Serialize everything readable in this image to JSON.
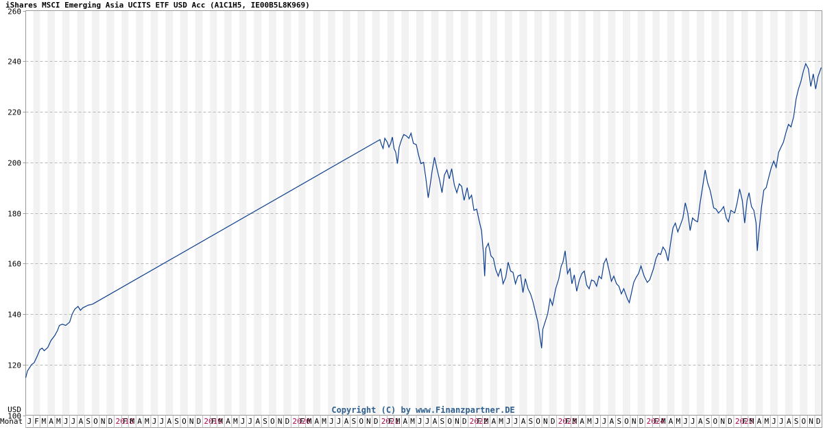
{
  "chart_data": {
    "type": "line",
    "title": "iShares MSCI Emerging Asia UCITS ETF USD Acc (A1C1H5, IE00B5L8K969)",
    "currency": "USD",
    "x_axis_label": "Monat",
    "copyright": "Copyright (C) by www.Finanzpartner.DE",
    "ylim": [
      100,
      260
    ],
    "yticks": [
      100,
      120,
      140,
      160,
      180,
      200,
      220,
      240,
      260
    ],
    "grid": true,
    "x_start": "2017-01-01",
    "x_end": "2025-12-31",
    "month_letters": [
      "J",
      "F",
      "M",
      "A",
      "M",
      "J",
      "J",
      "A",
      "S",
      "O",
      "N",
      "D"
    ],
    "years": [
      "2018",
      "2019",
      "2020",
      "2021",
      "2022",
      "2023",
      "2024",
      "2025"
    ],
    "line_color": "#0a3d8f",
    "series": [
      {
        "x": [
          "2017-01-01",
          "2017-01-08",
          "2017-01-25",
          "2017-02-05",
          "2017-02-18",
          "2017-03-01",
          "2017-03-10",
          "2017-03-18",
          "2017-04-02",
          "2017-04-15",
          "2017-05-01",
          "2017-05-12",
          "2017-05-20",
          "2017-06-01",
          "2017-06-15",
          "2017-07-01",
          "2017-07-12",
          "2017-07-23",
          "2017-08-05",
          "2017-08-15",
          "2017-08-25",
          "2017-09-05",
          "2017-09-15",
          "2017-09-25",
          "2017-10-05",
          "2021-01-02",
          "2021-01-08",
          "2021-01-15",
          "2021-01-22",
          "2021-02-01",
          "2021-02-08",
          "2021-02-15",
          "2021-02-22",
          "2021-03-01",
          "2021-03-08",
          "2021-03-15",
          "2021-03-22",
          "2021-04-01",
          "2021-04-10",
          "2021-04-20",
          "2021-05-01",
          "2021-05-10",
          "2021-05-20",
          "2021-06-01",
          "2021-06-10",
          "2021-06-20",
          "2021-07-01",
          "2021-07-10",
          "2021-07-20",
          "2021-07-28",
          "2021-08-05",
          "2021-08-15",
          "2021-08-25",
          "2021-09-05",
          "2021-09-15",
          "2021-09-25",
          "2021-10-05",
          "2021-10-15",
          "2021-10-25",
          "2021-11-05",
          "2021-11-15",
          "2021-11-25",
          "2021-12-05",
          "2021-12-15",
          "2021-12-28",
          "2022-01-05",
          "2022-01-15",
          "2022-01-25",
          "2022-02-05",
          "2022-02-15",
          "2022-02-25",
          "2022-03-05",
          "2022-03-10",
          "2022-03-15",
          "2022-03-25",
          "2022-04-05",
          "2022-04-15",
          "2022-04-25",
          "2022-05-05",
          "2022-05-15",
          "2022-05-25",
          "2022-06-05",
          "2022-06-15",
          "2022-06-25",
          "2022-07-05",
          "2022-07-15",
          "2022-07-25",
          "2022-08-05",
          "2022-08-15",
          "2022-08-25",
          "2022-09-05",
          "2022-09-15",
          "2022-09-25",
          "2022-10-05",
          "2022-10-15",
          "2022-10-25",
          "2022-10-31",
          "2022-11-05",
          "2022-11-15",
          "2022-11-25",
          "2022-12-05",
          "2022-12-15",
          "2022-12-28",
          "2023-01-10",
          "2023-01-20",
          "2023-01-27",
          "2023-02-05",
          "2023-02-15",
          "2023-02-25",
          "2023-03-05",
          "2023-03-15",
          "2023-03-25",
          "2023-04-05",
          "2023-04-15",
          "2023-04-25",
          "2023-05-05",
          "2023-05-15",
          "2023-05-25",
          "2023-06-05",
          "2023-06-15",
          "2023-06-25",
          "2023-07-05",
          "2023-07-15",
          "2023-07-25",
          "2023-08-05",
          "2023-08-15",
          "2023-08-25",
          "2023-09-05",
          "2023-09-15",
          "2023-09-25",
          "2023-10-05",
          "2023-10-20",
          "2023-10-28",
          "2023-11-05",
          "2023-11-15",
          "2023-11-25",
          "2023-12-05",
          "2023-12-15",
          "2023-12-28",
          "2024-01-10",
          "2024-01-20",
          "2024-02-05",
          "2024-02-15",
          "2024-02-25",
          "2024-03-05",
          "2024-03-15",
          "2024-03-25",
          "2024-04-05",
          "2024-04-15",
          "2024-04-25",
          "2024-05-05",
          "2024-05-15",
          "2024-05-25",
          "2024-06-05",
          "2024-06-15",
          "2024-06-25",
          "2024-07-05",
          "2024-07-15",
          "2024-07-25",
          "2024-08-05",
          "2024-08-15",
          "2024-08-25",
          "2024-09-05",
          "2024-09-15",
          "2024-09-25",
          "2024-10-02",
          "2024-10-10",
          "2024-10-20",
          "2024-10-30",
          "2024-11-10",
          "2024-11-20",
          "2024-12-01",
          "2024-12-10",
          "2024-12-20",
          "2025-01-05",
          "2025-01-15",
          "2025-01-25",
          "2025-02-05",
          "2025-02-15",
          "2025-02-25",
          "2025-03-05",
          "2025-03-15",
          "2025-03-25",
          "2025-04-03",
          "2025-04-08",
          "2025-04-15",
          "2025-04-25",
          "2025-05-05",
          "2025-05-15",
          "2025-05-25",
          "2025-06-05",
          "2025-06-15",
          "2025-06-25",
          "2025-07-05",
          "2025-07-15",
          "2025-07-25",
          "2025-08-05",
          "2025-08-15",
          "2025-08-25",
          "2025-09-05",
          "2025-09-15",
          "2025-09-25",
          "2025-10-05",
          "2025-10-15",
          "2025-10-25",
          "2025-11-05",
          "2025-11-15",
          "2025-11-25",
          "2025-12-05",
          "2025-12-15",
          "2025-12-28"
        ],
        "y": [
          114.8,
          117.5,
          120.0,
          120.8,
          123.5,
          126.0,
          126.5,
          125.5,
          126.8,
          129.5,
          131.5,
          133.5,
          135.5,
          136.0,
          135.5,
          136.8,
          140.0,
          142.0,
          143.0,
          141.5,
          142.5,
          143.0,
          143.5,
          143.7,
          144.0,
          209.0,
          207.0,
          205.5,
          209.5,
          208.0,
          206.0,
          207.5,
          210.0,
          205.5,
          204.0,
          199.5,
          206.0,
          209.0,
          211.0,
          210.5,
          209.5,
          211.5,
          207.5,
          207.0,
          203.0,
          199.5,
          200.0,
          194.0,
          186.0,
          191.0,
          196.5,
          202.0,
          197.5,
          193.0,
          188.0,
          195.0,
          197.0,
          193.5,
          197.5,
          191.0,
          188.0,
          191.5,
          190.5,
          185.0,
          190.0,
          185.5,
          187.0,
          181.0,
          181.5,
          177.0,
          173.0,
          164.0,
          155.0,
          166.0,
          168.0,
          163.0,
          162.0,
          157.5,
          155.0,
          158.0,
          152.0,
          154.5,
          160.5,
          157.0,
          156.5,
          152.0,
          155.0,
          155.5,
          148.5,
          154.0,
          150.0,
          148.0,
          145.0,
          141.0,
          137.0,
          130.5,
          126.5,
          134.0,
          137.0,
          140.0,
          146.0,
          143.5,
          150.0,
          154.0,
          159.0,
          160.5,
          165.0,
          156.0,
          158.0,
          152.0,
          155.5,
          149.0,
          153.5,
          156.0,
          157.0,
          151.5,
          150.0,
          153.5,
          153.0,
          151.0,
          155.0,
          154.0,
          160.0,
          162.0,
          157.5,
          153.0,
          155.0,
          152.0,
          151.0,
          148.0,
          150.0,
          146.0,
          144.5,
          148.0,
          152.5,
          154.5,
          156.0,
          159.0,
          155.0,
          152.5,
          153.5,
          158.0,
          162.0,
          164.0,
          163.5,
          166.5,
          165.0,
          161.0,
          168.0,
          174.0,
          176.0,
          172.5,
          175.0,
          178.0,
          184.0,
          180.0,
          173.0,
          178.0,
          177.0,
          176.5,
          184.0,
          190.0,
          197.0,
          192.0,
          189.0,
          186.0,
          182.0,
          181.5,
          180.0,
          181.0,
          182.5,
          178.0,
          176.5,
          181.0,
          180.0,
          184.0,
          189.5,
          185.0,
          176.0,
          185.0,
          188.0,
          182.5,
          181.0,
          176.0,
          165.0,
          172.5,
          182.0,
          189.0,
          190.0,
          194.0,
          198.0,
          200.5,
          198.0,
          204.0,
          206.0,
          208.0,
          212.0,
          215.0,
          214.0,
          218.0,
          225.0,
          229.0,
          232.0,
          236.0,
          239.0,
          237.0,
          230.0,
          235.0,
          229.0,
          234.0,
          237.5
        ]
      }
    ]
  }
}
